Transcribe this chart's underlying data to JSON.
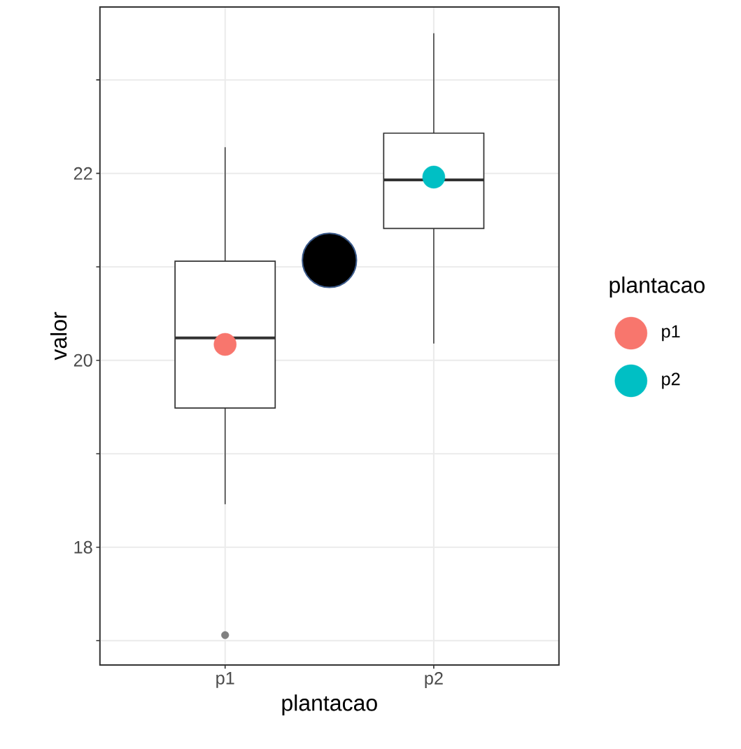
{
  "chart_data": {
    "type": "box",
    "xlabel": "plantacao",
    "ylabel": "valor",
    "legend_title": "plantacao",
    "categories": [
      "p1",
      null,
      "p2"
    ],
    "boxes": [
      {
        "low": 18.46,
        "q1": 19.49,
        "median": 20.24,
        "q3": 21.06,
        "high": 22.28,
        "outliers": [
          17.06
        ]
      },
      null,
      {
        "low": 20.18,
        "q1": 21.41,
        "median": 21.93,
        "q3": 22.43,
        "high": 23.5
      }
    ],
    "series": [
      {
        "name": "p1",
        "type": "scatter",
        "color": "#f8766d",
        "values": [
          20.17,
          null,
          null
        ]
      },
      {
        "name": "p2",
        "type": "scatter",
        "color": "#00bfc4",
        "values": [
          null,
          null,
          21.96
        ]
      },
      {
        "type": "scatter",
        "color": "#000000",
        "values": [
          null,
          21.07,
          null
        ]
      }
    ],
    "ylim": [
      16.74,
      23.78
    ],
    "yticks": [
      {
        "value": 17,
        "label": null
      },
      18,
      {
        "value": 19,
        "label": null
      },
      20,
      {
        "value": 21,
        "label": null
      },
      22,
      {
        "value": 23,
        "label": null
      }
    ],
    "grid": true,
    "legend": "right",
    "marker": "circle"
  }
}
